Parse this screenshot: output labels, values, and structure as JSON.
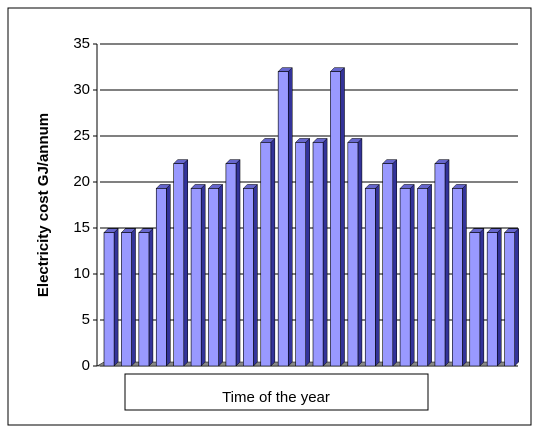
{
  "chart_data": {
    "type": "bar",
    "y_label": "Electricity cost GJ/annum",
    "x_label": "Time of the year",
    "categories": [
      null,
      null,
      null,
      null,
      null,
      null,
      null,
      null,
      null,
      null,
      null,
      null,
      null,
      null,
      null,
      null,
      null,
      null,
      null,
      null,
      null,
      null,
      null,
      null
    ],
    "values": [
      14.5,
      14.5,
      14.5,
      19.3,
      22,
      19.3,
      19.3,
      22,
      19.3,
      24.3,
      32,
      24.3,
      24.3,
      32,
      24.3,
      19.3,
      22,
      19.3,
      19.3,
      22,
      19.3,
      14.5,
      14.5,
      14.5
    ],
    "color": "#9999ff",
    "ylim": [
      0,
      35
    ],
    "yticks": [
      0,
      5,
      10,
      15,
      20,
      25,
      30,
      35
    ],
    "grid": true
  }
}
